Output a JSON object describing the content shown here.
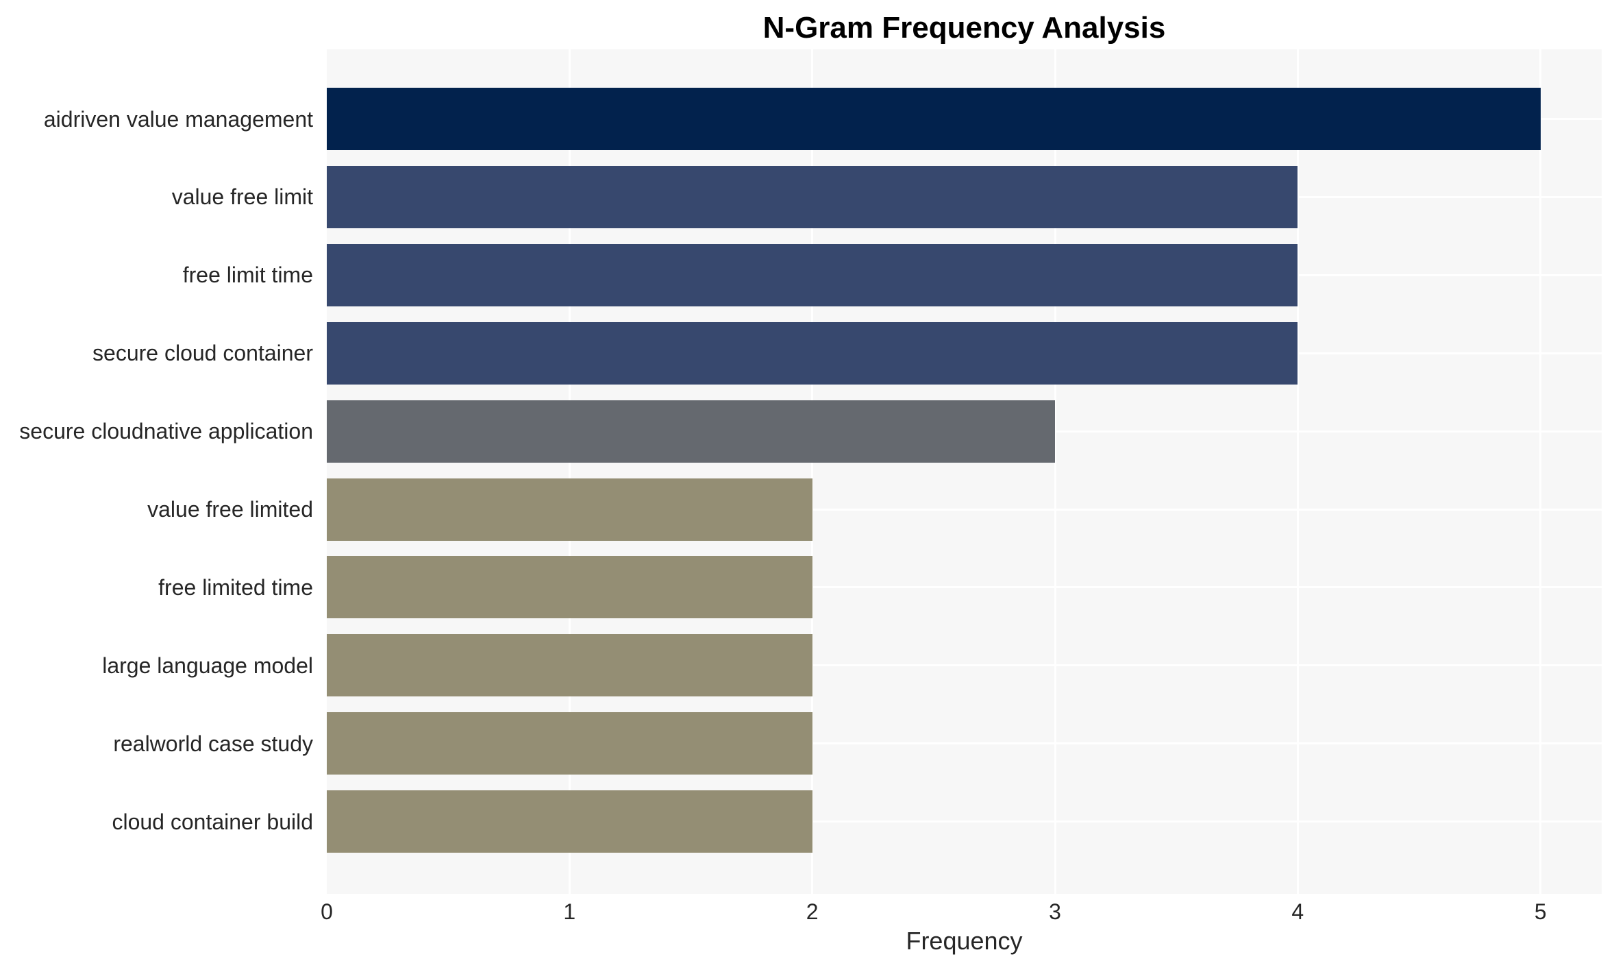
{
  "chart_data": {
    "type": "bar",
    "orientation": "horizontal",
    "title": "N-Gram Frequency Analysis",
    "xlabel": "Frequency",
    "ylabel": "",
    "categories": [
      "aidriven value management",
      "value free limit",
      "free limit time",
      "secure cloud container",
      "secure cloudnative application",
      "value free limited",
      "free limited time",
      "large language model",
      "realworld case study",
      "cloud container build"
    ],
    "values": [
      5,
      4,
      4,
      4,
      3,
      2,
      2,
      2,
      2,
      2
    ],
    "xticks": [
      0,
      1,
      2,
      3,
      4,
      5
    ],
    "xlim": [
      0,
      5.25
    ],
    "grid": "white major gridlines: vertical at integer ticks, horizontal at category centers",
    "legend_position": "none",
    "bar_colors": [
      "#02224d",
      "#37486e",
      "#37486e",
      "#37486e",
      "#65696f",
      "#948e74",
      "#948e74",
      "#948e74",
      "#948e74",
      "#948e74"
    ],
    "panel_background": "#f7f7f7",
    "gridline_color": "#ffffff",
    "figure_background": "#ffffff",
    "text_color": "#262626",
    "title_color": "#000000"
  }
}
